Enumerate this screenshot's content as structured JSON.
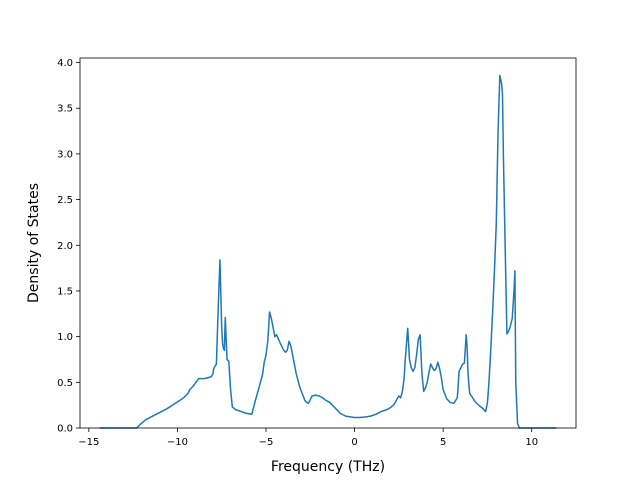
{
  "chart_data": {
    "type": "line",
    "title": "",
    "xlabel": "Frequency (THz)",
    "ylabel": "Density of States",
    "xlim": [
      -15.5,
      12.5
    ],
    "ylim": [
      0,
      4.05
    ],
    "xticks": [
      -15,
      -10,
      -5,
      0,
      5,
      10
    ],
    "yticks": [
      0.0,
      0.5,
      1.0,
      1.5,
      2.0,
      2.5,
      3.0,
      3.5,
      4.0
    ],
    "xtick_labels": [
      "−15",
      "−10",
      "−5",
      "0",
      "5",
      "10"
    ],
    "ytick_labels": [
      "0.0",
      "0.5",
      "1.0",
      "1.5",
      "2.0",
      "2.5",
      "3.0",
      "3.5",
      "4.0"
    ],
    "grid": false,
    "legend": "none",
    "series": [
      {
        "color": "#1f77b4",
        "x": [
          -14.4,
          -12.3,
          -12.1,
          -11.8,
          -11.2,
          -10.6,
          -10.2,
          -9.8,
          -9.6,
          -9.4,
          -9.3,
          -9.1,
          -8.8,
          -8.5,
          -8.3,
          -8.1,
          -8.0,
          -7.95,
          -7.9,
          -7.8,
          -7.7,
          -7.6,
          -7.5,
          -7.45,
          -7.4,
          -7.35,
          -7.3,
          -7.2,
          -7.1,
          -7.0,
          -6.9,
          -6.7,
          -6.4,
          -6.1,
          -5.8,
          -5.6,
          -5.4,
          -5.2,
          -5.1,
          -5.0,
          -4.9,
          -4.85,
          -4.8,
          -4.7,
          -4.6,
          -4.5,
          -4.4,
          -4.2,
          -4.0,
          -3.9,
          -3.8,
          -3.7,
          -3.6,
          -3.5,
          -3.3,
          -3.1,
          -2.9,
          -2.8,
          -2.7,
          -2.6,
          -2.4,
          -2.2,
          -2.0,
          -1.8,
          -1.6,
          -1.4,
          -1.2,
          -1.0,
          -0.8,
          -0.5,
          -0.2,
          0.0,
          0.3,
          0.6,
          0.9,
          1.2,
          1.5,
          1.8,
          2.0,
          2.2,
          2.3,
          2.4,
          2.5,
          2.6,
          2.7,
          2.8,
          2.85,
          2.9,
          3.0,
          3.1,
          3.2,
          3.3,
          3.4,
          3.5,
          3.6,
          3.7,
          3.8,
          3.9,
          4.0,
          4.1,
          4.2,
          4.3,
          4.4,
          4.5,
          4.6,
          4.7,
          4.8,
          4.9,
          5.0,
          5.2,
          5.4,
          5.6,
          5.8,
          5.9,
          6.0,
          6.1,
          6.2,
          6.3,
          6.35,
          6.4,
          6.45,
          6.5,
          6.6,
          6.8,
          7.0,
          7.2,
          7.4,
          7.5,
          7.55,
          7.6,
          7.7,
          7.8,
          7.9,
          8.0,
          8.1,
          8.2,
          8.3,
          8.35,
          8.4,
          8.5,
          8.6,
          8.7,
          8.8,
          8.9,
          9.0,
          9.05,
          9.1,
          9.2,
          9.3,
          9.4,
          10.0,
          11.4
        ],
        "y": [
          0.0,
          0.0,
          0.04,
          0.09,
          0.15,
          0.21,
          0.26,
          0.31,
          0.34,
          0.38,
          0.42,
          0.46,
          0.54,
          0.54,
          0.55,
          0.56,
          0.59,
          0.65,
          0.67,
          0.7,
          1.3,
          1.84,
          1.1,
          0.92,
          0.87,
          0.85,
          1.21,
          0.75,
          0.73,
          0.42,
          0.23,
          0.2,
          0.18,
          0.16,
          0.15,
          0.3,
          0.44,
          0.58,
          0.72,
          0.8,
          0.95,
          1.1,
          1.27,
          1.2,
          1.1,
          1.0,
          1.02,
          0.93,
          0.85,
          0.83,
          0.85,
          0.95,
          0.9,
          0.8,
          0.6,
          0.45,
          0.35,
          0.3,
          0.28,
          0.27,
          0.35,
          0.36,
          0.35,
          0.33,
          0.3,
          0.28,
          0.24,
          0.2,
          0.16,
          0.13,
          0.12,
          0.115,
          0.115,
          0.12,
          0.13,
          0.15,
          0.18,
          0.2,
          0.22,
          0.25,
          0.28,
          0.32,
          0.35,
          0.33,
          0.4,
          0.55,
          0.72,
          0.85,
          1.09,
          0.75,
          0.66,
          0.62,
          0.66,
          0.8,
          0.97,
          1.02,
          0.6,
          0.4,
          0.44,
          0.5,
          0.61,
          0.7,
          0.66,
          0.63,
          0.65,
          0.72,
          0.65,
          0.55,
          0.42,
          0.32,
          0.28,
          0.27,
          0.33,
          0.62,
          0.66,
          0.7,
          0.71,
          1.02,
          0.9,
          0.62,
          0.48,
          0.38,
          0.35,
          0.29,
          0.25,
          0.22,
          0.18,
          0.28,
          0.4,
          0.55,
          0.9,
          1.3,
          1.74,
          2.24,
          3.25,
          3.86,
          3.77,
          3.65,
          3.0,
          2.0,
          1.03,
          1.06,
          1.12,
          1.2,
          1.5,
          1.72,
          0.5,
          0.05,
          0.0,
          0.0,
          0.0,
          0.0
        ]
      }
    ]
  }
}
